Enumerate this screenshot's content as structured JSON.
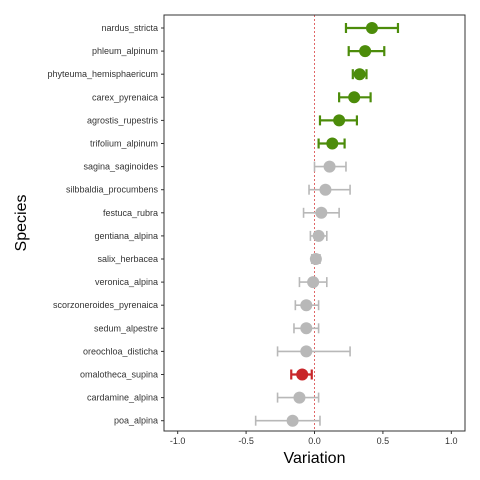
{
  "chart_data": {
    "type": "forest",
    "xlabel": "Variation",
    "ylabel": "Species",
    "xlim": [
      -1.1,
      1.1
    ],
    "xticks": [
      -1.0,
      -0.5,
      0.0,
      0.5,
      1.0
    ],
    "xtick_labels": [
      "-1.0",
      "-0.5",
      "0.0",
      "0.5",
      "1.0"
    ],
    "reference_line": 0,
    "grid": false,
    "colors": {
      "positive": "#4c8c0a",
      "negative": "#c8262a",
      "neutral": "#b8b8b8",
      "reference": "#e06666"
    },
    "points": [
      {
        "species": "nardus_stricta",
        "estimate": 0.42,
        "lower": 0.23,
        "upper": 0.61,
        "group": "positive"
      },
      {
        "species": "phleum_alpinum",
        "estimate": 0.37,
        "lower": 0.25,
        "upper": 0.51,
        "group": "positive"
      },
      {
        "species": "phyteuma_hemisphaericum",
        "estimate": 0.33,
        "lower": 0.28,
        "upper": 0.38,
        "group": "positive"
      },
      {
        "species": "carex_pyrenaica",
        "estimate": 0.29,
        "lower": 0.18,
        "upper": 0.41,
        "group": "positive"
      },
      {
        "species": "agrostis_rupestris",
        "estimate": 0.18,
        "lower": 0.04,
        "upper": 0.31,
        "group": "positive"
      },
      {
        "species": "trifolium_alpinum",
        "estimate": 0.13,
        "lower": 0.03,
        "upper": 0.22,
        "group": "positive"
      },
      {
        "species": "sagina_saginoides",
        "estimate": 0.11,
        "lower": 0.0,
        "upper": 0.23,
        "group": "neutral"
      },
      {
        "species": "silbbaldia_procumbens",
        "estimate": 0.08,
        "lower": -0.04,
        "upper": 0.26,
        "group": "neutral"
      },
      {
        "species": "festuca_rubra",
        "estimate": 0.05,
        "lower": -0.08,
        "upper": 0.18,
        "group": "neutral"
      },
      {
        "species": "gentiana_alpina",
        "estimate": 0.03,
        "lower": -0.03,
        "upper": 0.09,
        "group": "neutral"
      },
      {
        "species": "salix_herbacea",
        "estimate": 0.01,
        "lower": -0.02,
        "upper": 0.04,
        "group": "neutral"
      },
      {
        "species": "veronica_alpina",
        "estimate": -0.01,
        "lower": -0.11,
        "upper": 0.09,
        "group": "neutral"
      },
      {
        "species": "scorzoneroides_pyrenaica",
        "estimate": -0.06,
        "lower": -0.14,
        "upper": 0.03,
        "group": "neutral"
      },
      {
        "species": "sedum_alpestre",
        "estimate": -0.06,
        "lower": -0.15,
        "upper": 0.03,
        "group": "neutral"
      },
      {
        "species": "oreochloa_disticha",
        "estimate": -0.06,
        "lower": -0.27,
        "upper": 0.26,
        "group": "neutral"
      },
      {
        "species": "omalotheca_supina",
        "estimate": -0.09,
        "lower": -0.17,
        "upper": -0.02,
        "group": "negative"
      },
      {
        "species": "cardamine_alpina",
        "estimate": -0.11,
        "lower": -0.27,
        "upper": 0.03,
        "group": "neutral"
      },
      {
        "species": "poa_alpina",
        "estimate": -0.16,
        "lower": -0.43,
        "upper": 0.04,
        "group": "neutral"
      }
    ]
  }
}
